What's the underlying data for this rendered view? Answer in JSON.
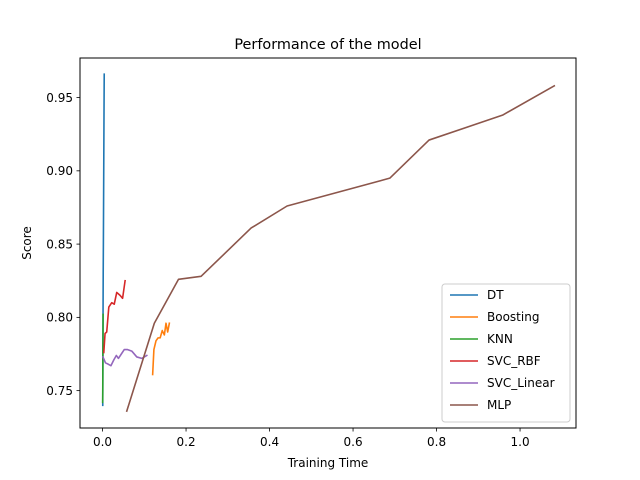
{
  "chart_data": {
    "type": "line",
    "title": "Performance of the model",
    "xlabel": "Training Time",
    "ylabel": "Score",
    "xlim": [
      -0.054,
      1.134
    ],
    "ylim": [
      0.7245,
      0.977
    ],
    "xticks": [
      0.0,
      0.2,
      0.4,
      0.6,
      0.8,
      1.0
    ],
    "xtick_labels": [
      "0.0",
      "0.2",
      "0.4",
      "0.6",
      "0.8",
      "1.0"
    ],
    "yticks": [
      0.75,
      0.8,
      0.85,
      0.9,
      0.95
    ],
    "ytick_labels": [
      "0.75",
      "0.80",
      "0.85",
      "0.90",
      "0.95"
    ],
    "grid": false,
    "legend_position": "lower-right",
    "series": [
      {
        "name": "DT",
        "color": "#1f77b4",
        "x": [
          0.0005,
          0.0007,
          0.001,
          0.0013,
          0.0016,
          0.002,
          0.0025,
          0.003,
          0.0035,
          0.004
        ],
        "y": [
          0.74,
          0.76,
          0.79,
          0.81,
          0.83,
          0.85,
          0.88,
          0.91,
          0.94,
          0.966
        ]
      },
      {
        "name": "Boosting",
        "color": "#ff7f0e",
        "x": [
          0.12,
          0.123,
          0.128,
          0.133,
          0.138,
          0.143,
          0.148,
          0.152,
          0.156,
          0.16
        ],
        "y": [
          0.761,
          0.778,
          0.784,
          0.786,
          0.786,
          0.791,
          0.788,
          0.796,
          0.79,
          0.796
        ]
      },
      {
        "name": "KNN",
        "color": "#2ca02c",
        "x": [
          0.0003,
          0.0005,
          0.0007,
          0.0009,
          0.0011,
          0.0013
        ],
        "y": [
          0.742,
          0.749,
          0.762,
          0.775,
          0.788,
          0.802
        ]
      },
      {
        "name": "SVC_RBF",
        "color": "#d62728",
        "x": [
          0.003,
          0.006,
          0.01,
          0.015,
          0.022,
          0.028,
          0.034,
          0.042,
          0.048,
          0.054
        ],
        "y": [
          0.776,
          0.789,
          0.79,
          0.807,
          0.81,
          0.809,
          0.817,
          0.815,
          0.813,
          0.825
        ]
      },
      {
        "name": "SVC_Linear",
        "color": "#9467bd",
        "x": [
          0.001,
          0.007,
          0.014,
          0.02,
          0.027,
          0.033,
          0.038,
          0.045,
          0.052,
          0.06,
          0.07,
          0.082,
          0.094,
          0.106
        ],
        "y": [
          0.773,
          0.769,
          0.768,
          0.767,
          0.771,
          0.774,
          0.772,
          0.775,
          0.778,
          0.778,
          0.777,
          0.773,
          0.772,
          0.774
        ]
      },
      {
        "name": "MLP",
        "color": "#8c564b",
        "x": [
          0.058,
          0.124,
          0.182,
          0.236,
          0.356,
          0.442,
          0.688,
          0.782,
          0.958,
          1.082
        ],
        "y": [
          0.736,
          0.796,
          0.826,
          0.828,
          0.861,
          0.876,
          0.895,
          0.921,
          0.938,
          0.958
        ]
      }
    ]
  }
}
